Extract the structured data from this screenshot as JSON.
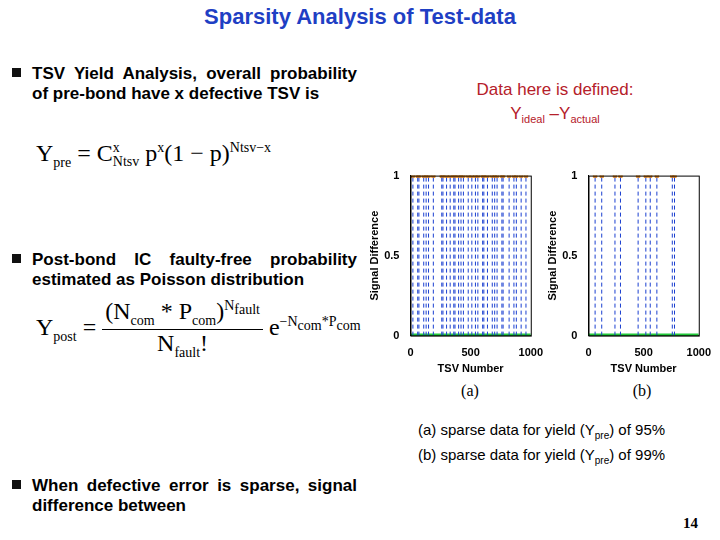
{
  "title": "Sparsity Analysis of Test-data",
  "bullets": [
    {
      "text": "TSV Yield Analysis, overall probability of pre-bond have x defective TSV is",
      "formula": [
        "Y",
        {
          "sub": "pre"
        },
        " = C",
        {
          "subsup": [
            "Ntsv",
            "x"
          ]
        },
        " p",
        {
          "sup": "x"
        },
        "(1 − p)",
        {
          "sup": "Ntsv−x"
        }
      ]
    },
    {
      "text": "Post-bond IC faulty-free probability estimated as Poisson distribution",
      "formula": [
        "Y",
        {
          "sub": "post"
        },
        " = ",
        {
          "frac": [
            [
              "(N",
              {
                "sub": "com"
              },
              " * P",
              {
                "sub": "com"
              },
              ")",
              {
                "sup": [
                  "N",
                  {
                    "sub": "fault"
                  }
                ]
              }
            ],
            [
              "N",
              {
                "sub": "fault"
              },
              "!"
            ]
          ]
        },
        " e",
        {
          "sup": [
            "−N",
            {
              "sub": "com"
            },
            "*P",
            {
              "sub": "com"
            }
          ]
        }
      ]
    },
    {
      "text": "When defective error is sparse, signal difference between"
    }
  ],
  "note": [
    "Data here is defined:",
    [
      "Y",
      {
        "sub": "ideal"
      },
      " –Y",
      {
        "sub": "actual"
      }
    ]
  ],
  "chart_data": [
    {
      "type": "scatter",
      "caption": "(a)",
      "x_label": "TSV Number",
      "y_label": "Signal Difference",
      "xlim": [
        0,
        1000
      ],
      "xticks": [
        0,
        500,
        1000
      ],
      "ylim": [
        0,
        1
      ],
      "yticks": [
        0,
        0.5,
        1
      ],
      "grid": false,
      "series": [
        {
          "x": [
            20,
            60,
            70,
            110,
            130,
            150,
            190,
            260,
            270,
            300,
            330,
            360,
            370,
            400,
            420,
            440,
            480,
            510,
            540,
            560,
            600,
            610,
            640,
            680,
            700,
            720,
            760,
            770,
            820,
            860,
            880,
            920,
            960
          ],
          "values": [
            1,
            1,
            1,
            1,
            1,
            1,
            1,
            1,
            1,
            1,
            1,
            1,
            1,
            1,
            1,
            1,
            1,
            1,
            1,
            1,
            1,
            1,
            1,
            1,
            1,
            1,
            1,
            1,
            1,
            1,
            1,
            1,
            1
          ],
          "color": "#e8891c",
          "marker": "square",
          "line_style": "dashed"
        },
        {
          "x": [
            1,
            1000
          ],
          "values": [
            0,
            0
          ],
          "color": "#22c93a",
          "line_style": "solid"
        }
      ]
    },
    {
      "type": "scatter",
      "caption": "(b)",
      "x_label": "TSV Number",
      "y_label": "Signal Difference",
      "xlim": [
        0,
        1000
      ],
      "xticks": [
        0,
        500,
        1000
      ],
      "ylim": [
        0,
        1
      ],
      "yticks": [
        0,
        0.5,
        1
      ],
      "grid": false,
      "series": [
        {
          "x": [
            60,
            120,
            240,
            290,
            450,
            520,
            560,
            620,
            760,
            780
          ],
          "values": [
            1,
            1,
            1,
            1,
            1,
            1,
            1,
            1,
            1,
            1
          ],
          "color": "#e8891c",
          "marker": "square",
          "line_style": "dashed"
        },
        {
          "x": [
            1,
            1000
          ],
          "values": [
            0,
            0
          ],
          "color": "#22c93a",
          "line_style": "solid"
        }
      ]
    }
  ],
  "captions": [
    [
      "(a) sparse data for yield (Y",
      {
        "sub": "pre"
      },
      ") of 95%"
    ],
    [
      "(b) sparse data for yield (Y",
      {
        "sub": "pre"
      },
      ") of 99%"
    ]
  ],
  "page_number": 14
}
